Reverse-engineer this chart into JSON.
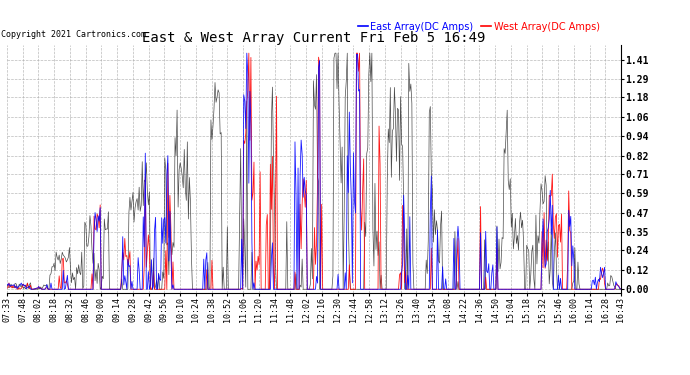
{
  "title": "East & West Array Current Fri Feb 5 16:49",
  "copyright": "Copyright 2021 Cartronics.com",
  "legend_east": "East Array(DC Amps)",
  "legend_west": "West Array(DC Amps)",
  "east_color": "#0000ff",
  "west_color": "#ff0000",
  "black_color": "#000000",
  "background_color": "#ffffff",
  "grid_color": "#aaaaaa",
  "yticks": [
    0.0,
    0.12,
    0.24,
    0.35,
    0.47,
    0.59,
    0.71,
    0.82,
    0.94,
    1.06,
    1.18,
    1.29,
    1.41
  ],
  "ylim": [
    -0.02,
    1.5
  ],
  "time_labels": [
    "07:33",
    "07:48",
    "08:02",
    "08:18",
    "08:32",
    "08:46",
    "09:00",
    "09:14",
    "09:28",
    "09:42",
    "09:56",
    "10:10",
    "10:24",
    "10:38",
    "10:52",
    "11:06",
    "11:20",
    "11:34",
    "11:48",
    "12:02",
    "12:16",
    "12:30",
    "12:44",
    "12:58",
    "13:12",
    "13:26",
    "13:40",
    "13:54",
    "14:08",
    "14:22",
    "14:36",
    "14:50",
    "15:04",
    "15:18",
    "15:32",
    "15:46",
    "16:00",
    "16:14",
    "16:28",
    "16:43"
  ],
  "n_points": 600,
  "seed": 42
}
